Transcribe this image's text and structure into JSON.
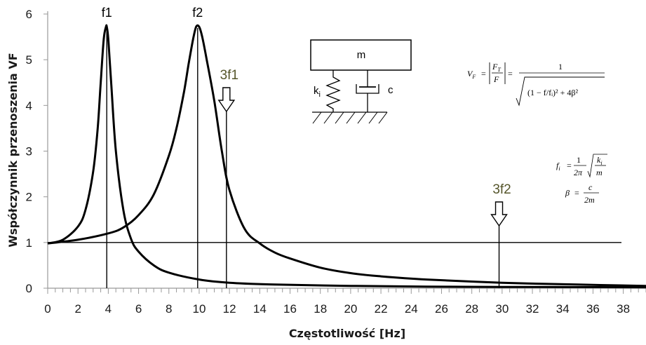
{
  "chart_data": {
    "type": "line",
    "xlabel": "Częstotliwość [Hz]",
    "ylabel": "Współczynnik  przenoszenia  VF",
    "xlim": [
      0,
      39.5
    ],
    "ylim": [
      0,
      6
    ],
    "x_ticks": [
      0,
      2,
      4,
      6,
      8,
      10,
      12,
      14,
      16,
      18,
      20,
      22,
      24,
      26,
      28,
      30,
      32,
      34,
      36,
      38
    ],
    "y_ticks": [
      0,
      1,
      2,
      3,
      4,
      5,
      6
    ],
    "grid": false,
    "legend": "none",
    "reference_line_y": 1,
    "series": [
      {
        "x": [
          0,
          1,
          2,
          2.5,
          3,
          3.3,
          3.5,
          3.7,
          3.85,
          3.9,
          4.0,
          4.2,
          4.5,
          5,
          5.5,
          6,
          7,
          8,
          10,
          12,
          15,
          20,
          25,
          30,
          39.5
        ],
        "y": [
          0.98,
          1.06,
          1.35,
          1.72,
          2.55,
          3.5,
          4.5,
          5.45,
          5.72,
          5.72,
          5.45,
          4.45,
          3.0,
          1.7,
          1.08,
          0.8,
          0.5,
          0.34,
          0.19,
          0.12,
          0.08,
          0.05,
          0.035,
          0.028,
          0.02
        ]
      },
      {
        "x": [
          0,
          2,
          4,
          5,
          6,
          7,
          8,
          8.5,
          9,
          9.3,
          9.6,
          9.8,
          10.0,
          10.2,
          10.5,
          11,
          11.5,
          12,
          13,
          14,
          15,
          16,
          18,
          20,
          22,
          25,
          30,
          35,
          39.5
        ],
        "y": [
          0.98,
          1.06,
          1.2,
          1.33,
          1.6,
          2.05,
          2.9,
          3.5,
          4.3,
          4.9,
          5.45,
          5.72,
          5.72,
          5.5,
          5.0,
          4.1,
          3.0,
          2.15,
          1.3,
          0.98,
          0.78,
          0.65,
          0.45,
          0.33,
          0.26,
          0.19,
          0.12,
          0.08,
          0.05
        ]
      }
    ],
    "vertical_markers": [
      {
        "x": 3.9,
        "label": "f1"
      },
      {
        "x": 9.9,
        "label": "f2"
      },
      {
        "x": 11.8,
        "label": "3f1",
        "arrow": true
      },
      {
        "x": 29.8,
        "label": "3f2",
        "arrow": true
      }
    ]
  },
  "diagram": {
    "mass_label": "m",
    "spring_label": "k",
    "spring_subscript": "i",
    "damper_label": "c"
  },
  "formulas": {
    "vf": {
      "lhs": "V",
      "lhs_sub": "F",
      "eq": "=",
      "frac_num": "F",
      "frac_num_sub": "T",
      "frac_den": "F",
      "one": "1",
      "inner": "(1 − f/fᵢ)² + 4β²"
    },
    "fi": {
      "lhs": "f",
      "lhs_sub": "i",
      "one": "1",
      "two_pi": "2π",
      "num": "k",
      "num_sub": "i",
      "den": "m"
    },
    "beta": {
      "lhs": "β",
      "num": "c",
      "den": "2m"
    }
  }
}
